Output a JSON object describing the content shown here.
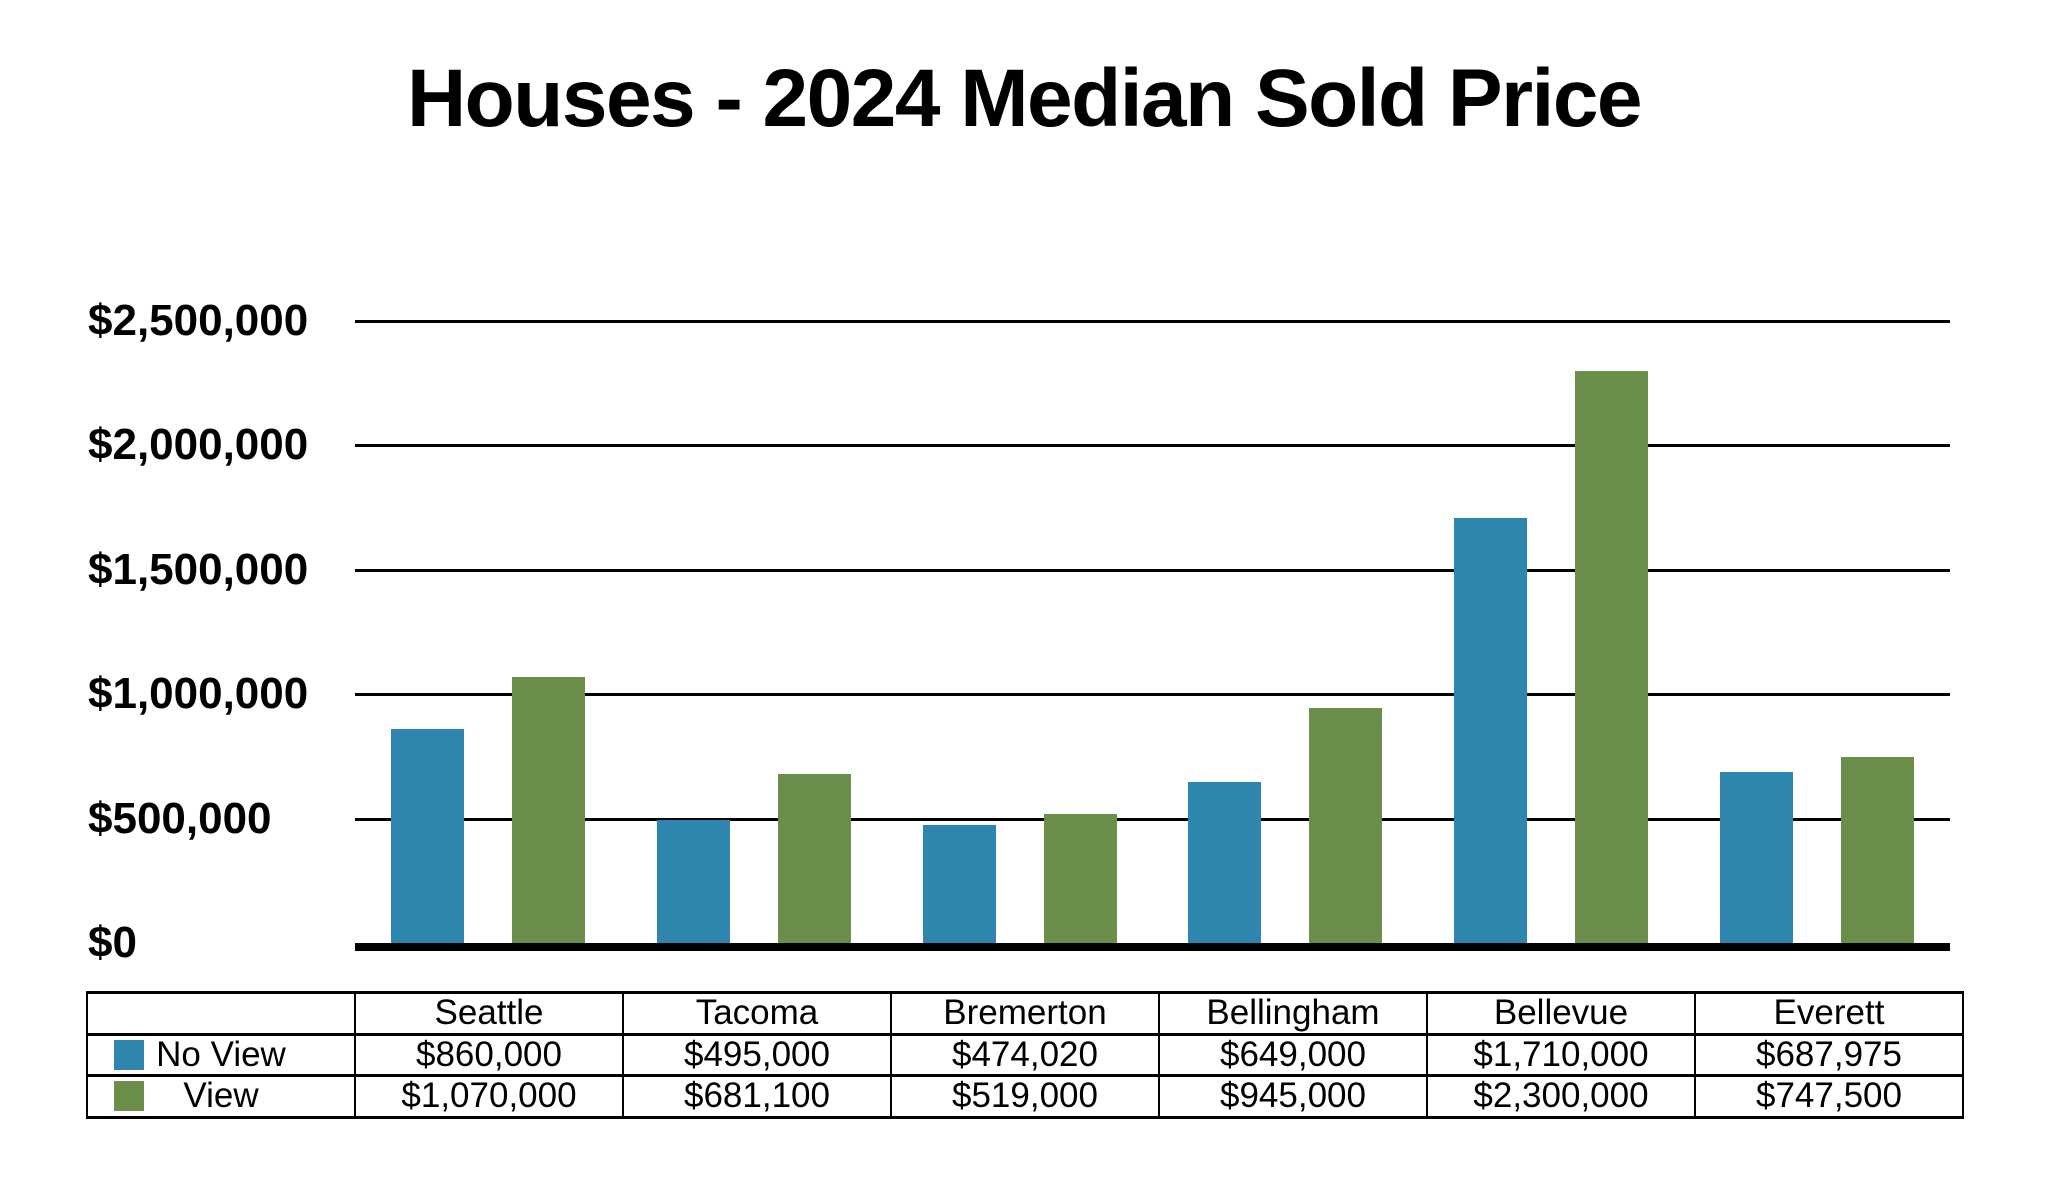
{
  "title": "Houses - 2024 Median Sold Price",
  "chart_data": {
    "type": "bar",
    "title": "Houses - 2024 Median Sold Price",
    "categories": [
      "Seattle",
      "Tacoma",
      "Bremerton",
      "Bellingham",
      "Bellevue",
      "Everett"
    ],
    "series": [
      {
        "name": "No View",
        "color": "#2E85AD",
        "values": [
          860000,
          495000,
          474020,
          649000,
          1710000,
          687975
        ],
        "formatted": [
          "$860,000",
          "$495,000",
          "$474,020",
          "$649,000",
          "$1,710,000",
          "$687,975"
        ]
      },
      {
        "name": "View",
        "color": "#6B8F4B",
        "values": [
          1070000,
          681100,
          519000,
          945000,
          2300000,
          747500
        ],
        "formatted": [
          "$1,070,000",
          "$681,100",
          "$519,000",
          "$945,000",
          "$2,300,000",
          "$747,500"
        ]
      }
    ],
    "xlabel": "",
    "ylabel": "",
    "ylim": [
      0,
      2500000
    ],
    "ytick_interval": 500000,
    "ytick_labels_top_to_bottom": [
      "$2,500,000",
      "$2,000,000",
      "$1,500,000",
      "$1,000,000",
      "$500,000",
      "$0"
    ],
    "grid": "horizontal",
    "legend_position": "table-below-chart"
  },
  "table": {
    "corner_cell": ""
  },
  "colors": {
    "bar_no_view": "#2E85AD",
    "bar_view": "#6B8F4B",
    "gridline": "#000000",
    "baseline": "#000000",
    "text": "#000000",
    "background": "#FFFFFF"
  }
}
